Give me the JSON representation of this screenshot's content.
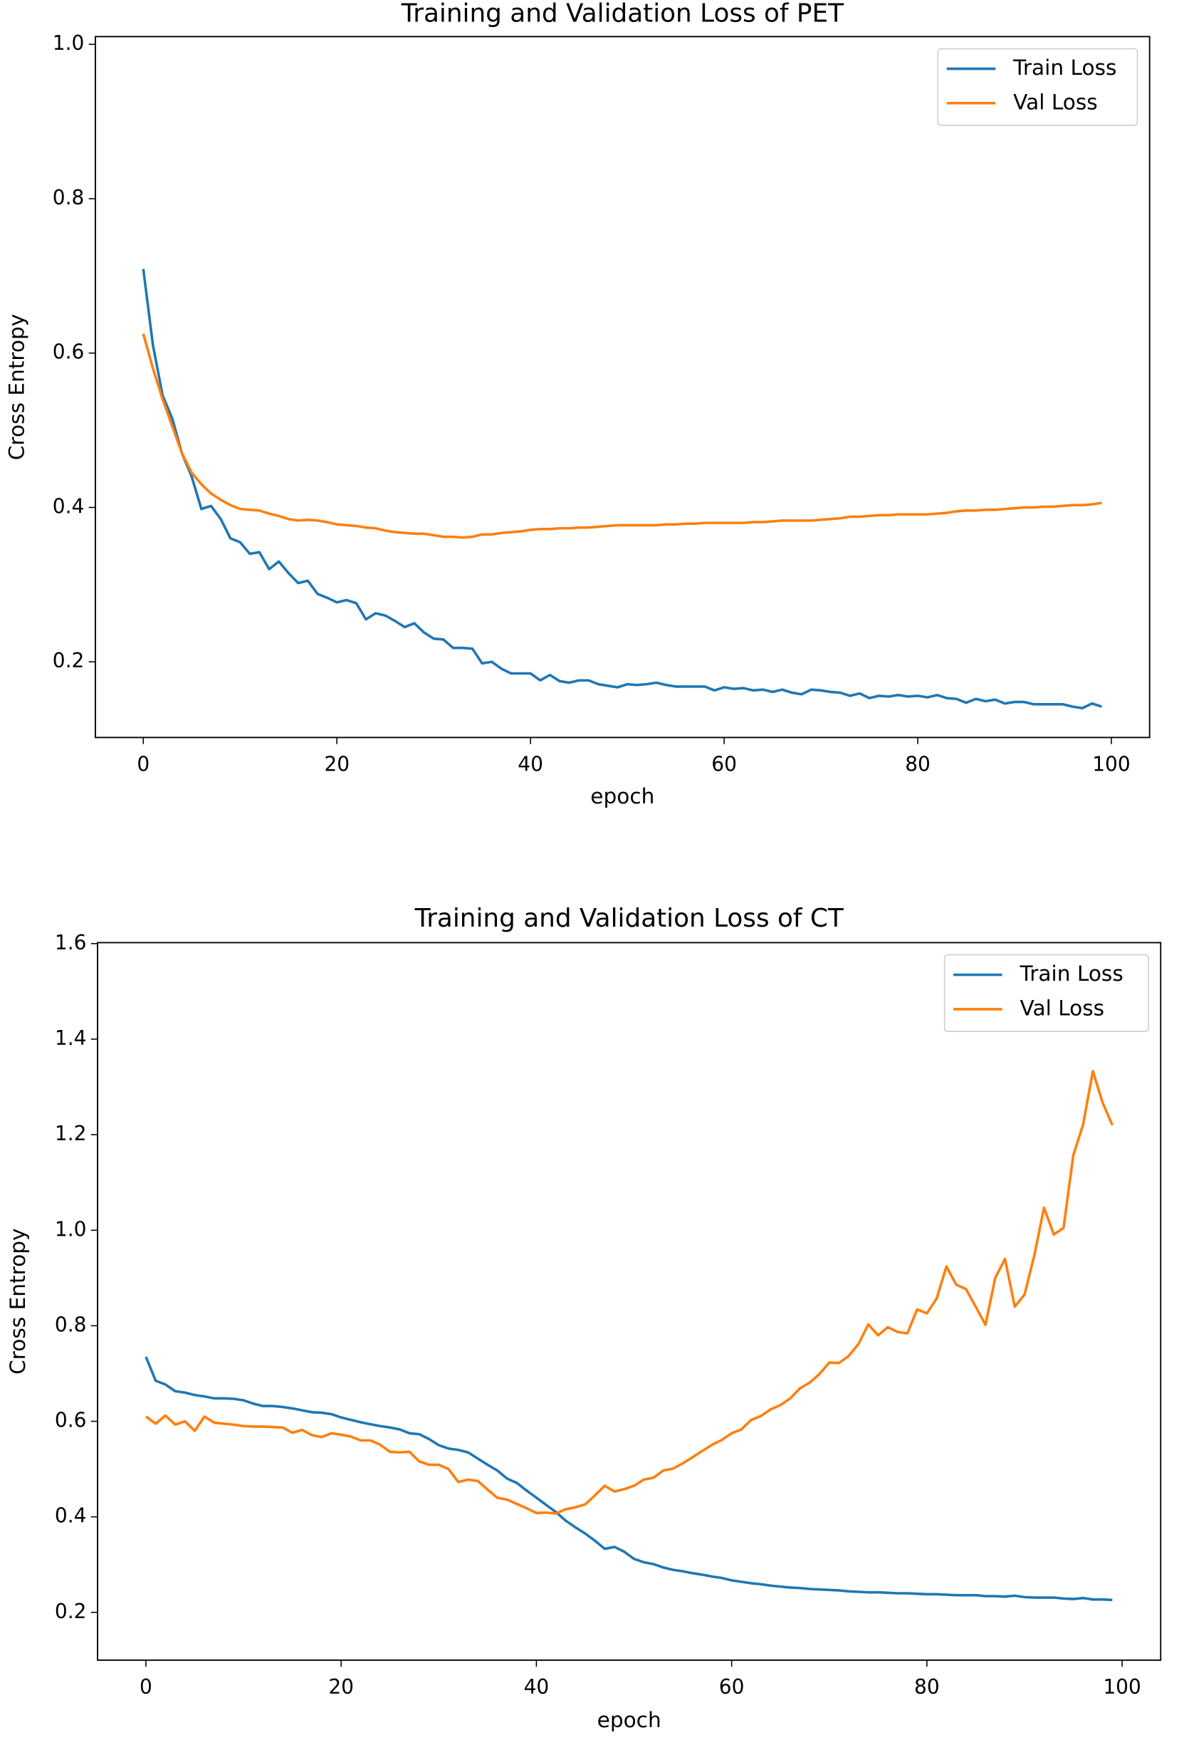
{
  "chart_data": [
    {
      "type": "line",
      "title": "Training and Validation Loss of PET",
      "x_label": "epoch",
      "y_label": "Cross Entropy",
      "x": [
        0,
        1,
        2,
        3,
        4,
        5,
        6,
        7,
        8,
        9,
        10,
        11,
        12,
        13,
        14,
        15,
        16,
        17,
        18,
        19,
        20,
        21,
        22,
        23,
        24,
        25,
        26,
        27,
        28,
        29,
        30,
        31,
        32,
        33,
        34,
        35,
        36,
        37,
        38,
        39,
        40,
        41,
        42,
        43,
        44,
        45,
        46,
        47,
        48,
        49,
        50,
        51,
        52,
        53,
        54,
        55,
        56,
        57,
        58,
        59,
        60,
        61,
        62,
        63,
        64,
        65,
        66,
        67,
        68,
        69,
        70,
        71,
        72,
        73,
        74,
        75,
        76,
        77,
        78,
        79,
        80,
        81,
        82,
        83,
        84,
        85,
        86,
        87,
        88,
        89,
        90,
        91,
        92,
        93,
        94,
        95,
        96,
        97,
        98,
        99
      ],
      "series": [
        {
          "name": "Train Loss",
          "color": "#1f77b4",
          "values": [
            0.709,
            0.61,
            0.545,
            0.515,
            0.47,
            0.44,
            0.398,
            0.402,
            0.385,
            0.36,
            0.355,
            0.34,
            0.342,
            0.32,
            0.33,
            0.315,
            0.302,
            0.305,
            0.288,
            0.283,
            0.277,
            0.28,
            0.276,
            0.255,
            0.263,
            0.26,
            0.253,
            0.245,
            0.25,
            0.238,
            0.23,
            0.229,
            0.218,
            0.218,
            0.217,
            0.198,
            0.2,
            0.191,
            0.185,
            0.185,
            0.185,
            0.176,
            0.183,
            0.175,
            0.173,
            0.176,
            0.176,
            0.171,
            0.169,
            0.167,
            0.171,
            0.17,
            0.171,
            0.173,
            0.17,
            0.168,
            0.168,
            0.168,
            0.168,
            0.163,
            0.167,
            0.165,
            0.166,
            0.163,
            0.164,
            0.161,
            0.164,
            0.16,
            0.158,
            0.164,
            0.163,
            0.161,
            0.16,
            0.156,
            0.159,
            0.153,
            0.156,
            0.155,
            0.157,
            0.155,
            0.156,
            0.154,
            0.157,
            0.153,
            0.152,
            0.147,
            0.152,
            0.149,
            0.151,
            0.146,
            0.148,
            0.148,
            0.145,
            0.145,
            0.145,
            0.145,
            0.142,
            0.14,
            0.146,
            0.142
          ]
        },
        {
          "name": "Val Loss",
          "color": "#ff7f0e",
          "values": [
            0.625,
            0.58,
            0.54,
            0.505,
            0.47,
            0.445,
            0.43,
            0.418,
            0.41,
            0.403,
            0.398,
            0.397,
            0.396,
            0.392,
            0.389,
            0.385,
            0.383,
            0.384,
            0.383,
            0.381,
            0.378,
            0.377,
            0.376,
            0.374,
            0.373,
            0.37,
            0.368,
            0.367,
            0.366,
            0.366,
            0.364,
            0.362,
            0.362,
            0.361,
            0.362,
            0.365,
            0.365,
            0.367,
            0.368,
            0.369,
            0.371,
            0.372,
            0.372,
            0.373,
            0.373,
            0.374,
            0.374,
            0.375,
            0.376,
            0.377,
            0.377,
            0.377,
            0.377,
            0.377,
            0.378,
            0.378,
            0.379,
            0.379,
            0.38,
            0.38,
            0.38,
            0.38,
            0.38,
            0.381,
            0.381,
            0.382,
            0.383,
            0.383,
            0.383,
            0.383,
            0.384,
            0.385,
            0.386,
            0.388,
            0.388,
            0.389,
            0.39,
            0.39,
            0.391,
            0.391,
            0.391,
            0.391,
            0.392,
            0.393,
            0.395,
            0.396,
            0.396,
            0.397,
            0.397,
            0.398,
            0.399,
            0.4,
            0.4,
            0.401,
            0.401,
            0.402,
            0.403,
            0.403,
            0.404,
            0.406
          ]
        }
      ],
      "xlim": [
        -4.95,
        103.95
      ],
      "xticks": [
        0,
        20,
        40,
        60,
        80,
        100
      ],
      "ylim": [
        0.102,
        1.01
      ],
      "yticks": [
        0.2,
        0.4,
        0.6,
        0.8,
        {
          "value": 1.0,
          "label": "1.0"
        }
      ],
      "legend": "upper right",
      "grid": false
    },
    {
      "type": "line",
      "title": "Training and Validation Loss of CT",
      "x_label": "epoch",
      "y_label": "Cross Entropy",
      "x": [
        0,
        1,
        2,
        3,
        4,
        5,
        6,
        7,
        8,
        9,
        10,
        11,
        12,
        13,
        14,
        15,
        16,
        17,
        18,
        19,
        20,
        21,
        22,
        23,
        24,
        25,
        26,
        27,
        28,
        29,
        30,
        31,
        32,
        33,
        34,
        35,
        36,
        37,
        38,
        39,
        40,
        41,
        42,
        43,
        44,
        45,
        46,
        47,
        48,
        49,
        50,
        51,
        52,
        53,
        54,
        55,
        56,
        57,
        58,
        59,
        60,
        61,
        62,
        63,
        64,
        65,
        66,
        67,
        68,
        69,
        70,
        71,
        72,
        73,
        74,
        75,
        76,
        77,
        78,
        79,
        80,
        81,
        82,
        83,
        84,
        85,
        86,
        87,
        88,
        89,
        90,
        91,
        92,
        93,
        94,
        95,
        96,
        97,
        98,
        99
      ],
      "series": [
        {
          "name": "Train Loss",
          "color": "#1f77b4",
          "values": [
            0.735,
            0.685,
            0.677,
            0.663,
            0.66,
            0.655,
            0.652,
            0.648,
            0.648,
            0.647,
            0.644,
            0.637,
            0.632,
            0.632,
            0.63,
            0.627,
            0.623,
            0.619,
            0.618,
            0.615,
            0.608,
            0.603,
            0.598,
            0.594,
            0.59,
            0.587,
            0.583,
            0.575,
            0.573,
            0.563,
            0.55,
            0.543,
            0.54,
            0.535,
            0.522,
            0.509,
            0.497,
            0.48,
            0.471,
            0.455,
            0.44,
            0.425,
            0.41,
            0.392,
            0.378,
            0.365,
            0.35,
            0.333,
            0.337,
            0.327,
            0.312,
            0.305,
            0.301,
            0.294,
            0.289,
            0.286,
            0.282,
            0.279,
            0.275,
            0.272,
            0.267,
            0.264,
            0.261,
            0.259,
            0.256,
            0.254,
            0.252,
            0.251,
            0.249,
            0.248,
            0.247,
            0.246,
            0.244,
            0.243,
            0.242,
            0.242,
            0.241,
            0.24,
            0.24,
            0.239,
            0.238,
            0.238,
            0.237,
            0.236,
            0.236,
            0.236,
            0.234,
            0.234,
            0.233,
            0.235,
            0.232,
            0.231,
            0.231,
            0.231,
            0.229,
            0.228,
            0.23,
            0.227,
            0.227,
            0.226
          ]
        },
        {
          "name": "Val Loss",
          "color": "#ff7f0e",
          "values": [
            0.61,
            0.595,
            0.612,
            0.593,
            0.6,
            0.58,
            0.61,
            0.597,
            0.595,
            0.593,
            0.59,
            0.589,
            0.589,
            0.588,
            0.587,
            0.576,
            0.582,
            0.571,
            0.567,
            0.575,
            0.572,
            0.568,
            0.56,
            0.56,
            0.551,
            0.536,
            0.535,
            0.536,
            0.516,
            0.509,
            0.509,
            0.5,
            0.473,
            0.478,
            0.475,
            0.457,
            0.44,
            0.436,
            0.427,
            0.418,
            0.408,
            0.409,
            0.407,
            0.416,
            0.42,
            0.426,
            0.445,
            0.465,
            0.453,
            0.458,
            0.465,
            0.478,
            0.482,
            0.497,
            0.501,
            0.512,
            0.525,
            0.538,
            0.551,
            0.561,
            0.575,
            0.583,
            0.603,
            0.611,
            0.625,
            0.634,
            0.648,
            0.669,
            0.681,
            0.699,
            0.723,
            0.722,
            0.737,
            0.762,
            0.803,
            0.78,
            0.797,
            0.787,
            0.784,
            0.834,
            0.826,
            0.857,
            0.924,
            0.886,
            0.877,
            0.84,
            0.802,
            0.9,
            0.94,
            0.84,
            0.865,
            0.947,
            1.047,
            0.991,
            1.005,
            1.157,
            1.221,
            1.333,
            1.267,
            1.22
          ]
        }
      ],
      "xlim": [
        -4.95,
        103.95
      ],
      "xticks": [
        0,
        20,
        40,
        60,
        80,
        100
      ],
      "ylim": [
        0.1,
        1.602
      ],
      "yticks": [
        0.2,
        0.4,
        0.6,
        0.8,
        {
          "value": 1.0,
          "label": "1.0"
        },
        1.2,
        1.4,
        1.6
      ],
      "legend": "upper right",
      "grid": false
    }
  ]
}
